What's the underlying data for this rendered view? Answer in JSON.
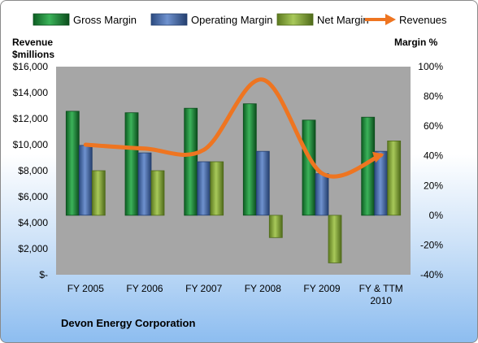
{
  "chart_data": {
    "type": "bar",
    "categories": [
      "FY 2005",
      "FY 2006",
      "FY 2007",
      "FY 2008",
      "FY 2009",
      "FY & TTM 2010"
    ],
    "series": [
      {
        "name": "Gross Margin",
        "kind": "bar",
        "axis": "right",
        "unit": "%",
        "values": [
          70,
          69,
          72,
          75,
          64,
          66
        ],
        "color": "#1f8f3a"
      },
      {
        "name": "Operating Margin",
        "kind": "bar",
        "axis": "right",
        "unit": "%",
        "values": [
          47,
          42,
          36,
          43,
          28,
          43
        ],
        "color": "#4a6fb0"
      },
      {
        "name": "Net Margin",
        "kind": "bar",
        "axis": "right",
        "unit": "%",
        "values": [
          30,
          30,
          36,
          -15,
          -32,
          50
        ],
        "color": "#8fb03e"
      },
      {
        "name": "Revenues",
        "kind": "line",
        "axis": "left",
        "unit": "$millions",
        "values": [
          10000,
          9700,
          9600,
          15000,
          7800,
          9200
        ],
        "color": "#ee7521"
      }
    ],
    "left_axis": {
      "label_lines": [
        "Revenue",
        "$millions"
      ],
      "min": 0,
      "max": 16000,
      "step": 2000,
      "tick_labels": [
        "$-",
        "$2,000",
        "$4,000",
        "$6,000",
        "$8,000",
        "$10,000",
        "$12,000",
        "$14,000",
        "$16,000"
      ]
    },
    "right_axis": {
      "label": "Margin  %",
      "min": -40,
      "max": 100,
      "step": 20,
      "tick_labels": [
        "-40%",
        "-20%",
        "0%",
        "20%",
        "40%",
        "60%",
        "80%",
        "100%"
      ]
    },
    "category_label_lines": [
      [
        "FY 2005"
      ],
      [
        "FY 2006"
      ],
      [
        "FY 2007"
      ],
      [
        "FY 2008"
      ],
      [
        "FY 2009"
      ],
      [
        "FY & TTM",
        "2010"
      ]
    ],
    "legend_position": "top",
    "grid": false,
    "plot_background": "#a6a6a6",
    "company": "Devon Energy Corporation"
  }
}
